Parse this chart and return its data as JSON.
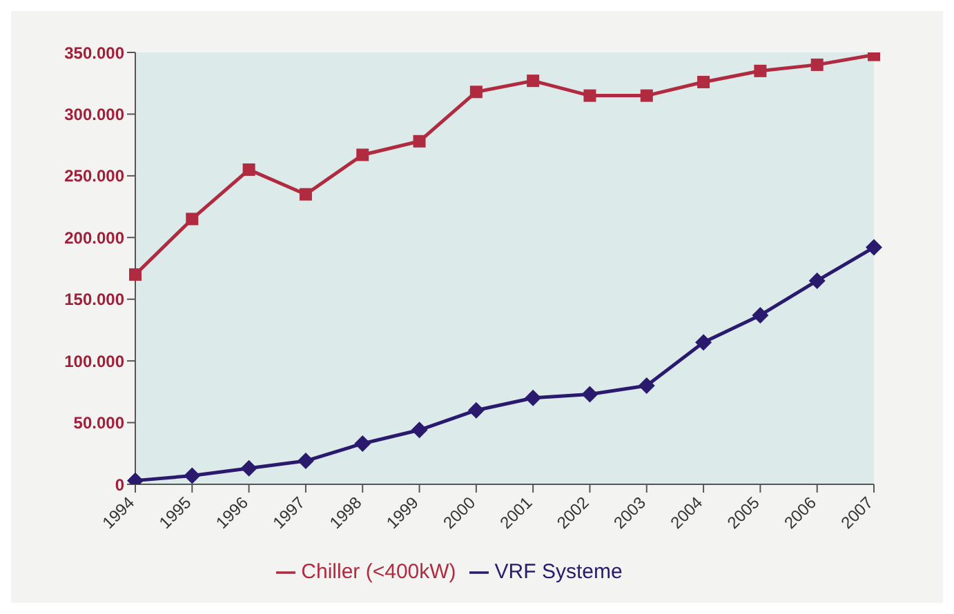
{
  "chart_data": {
    "type": "line",
    "categories": [
      "1994",
      "1995",
      "1996",
      "1997",
      "1998",
      "1999",
      "2000",
      "2001",
      "2002",
      "2003",
      "2004",
      "2005",
      "2006",
      "2007"
    ],
    "series": [
      {
        "name": "Chiller (<400kW)",
        "color": "#b02a40",
        "marker": "square",
        "values": [
          170000,
          215000,
          255000,
          235000,
          267000,
          278000,
          318000,
          327000,
          315000,
          315000,
          326000,
          335000,
          340000,
          348000
        ]
      },
      {
        "name": "VRF Systeme",
        "color": "#2a1a6e",
        "marker": "diamond",
        "values": [
          3000,
          7000,
          13000,
          19000,
          33000,
          44000,
          60000,
          70000,
          73000,
          80000,
          115000,
          137000,
          165000,
          192000
        ]
      }
    ],
    "ylim": [
      0,
      350000
    ],
    "yticks": [
      {
        "value": 0,
        "label": "0"
      },
      {
        "value": 50000,
        "label": "50.000"
      },
      {
        "value": 100000,
        "label": "100.000"
      },
      {
        "value": 150000,
        "label": "150.000"
      },
      {
        "value": 200000,
        "label": "200.000"
      },
      {
        "value": 250000,
        "label": "250.000"
      },
      {
        "value": 300000,
        "label": "300.000"
      },
      {
        "value": 350000,
        "label": "350.000"
      }
    ],
    "grid": false,
    "legend": "bottom"
  }
}
